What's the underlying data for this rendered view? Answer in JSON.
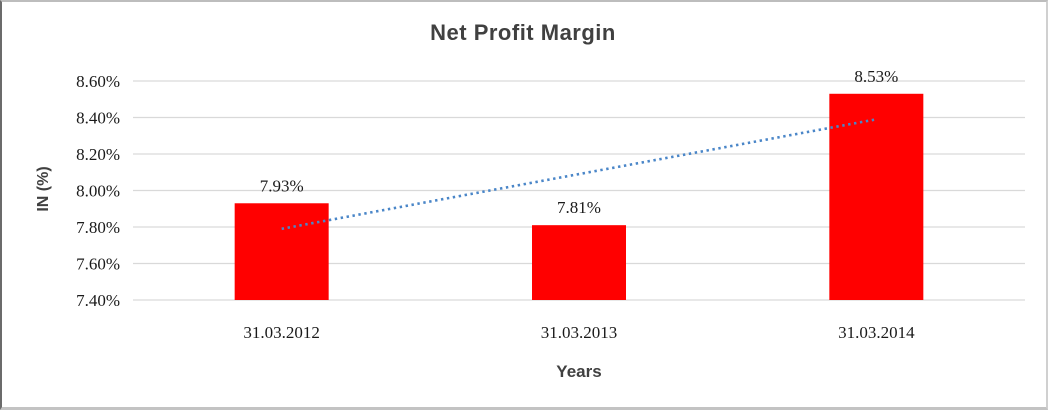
{
  "chart_data": {
    "type": "bar",
    "title": "Net Profit Margin",
    "xlabel": "Years",
    "ylabel": "IN (%)",
    "categories": [
      "31.03.2012",
      "31.03.2013",
      "31.03.2014"
    ],
    "series": [
      {
        "name": "Net Profit Margin",
        "values": [
          7.93,
          7.81,
          8.53
        ]
      }
    ],
    "data_labels": [
      "7.93%",
      "7.81%",
      "8.53%"
    ],
    "ylim": [
      7.4,
      8.6
    ],
    "ytick_step": 0.2,
    "ytick_labels": [
      "7.40%",
      "7.60%",
      "7.80%",
      "8.00%",
      "8.20%",
      "8.40%",
      "8.60%"
    ],
    "grid": true,
    "legend": "none",
    "trendline": {
      "type": "linear",
      "style": "dotted",
      "points": [
        7.79,
        8.09,
        8.39
      ]
    },
    "colors": {
      "bar": "#ff0000",
      "trendline": "#4a86c8",
      "gridline": "#d9d9d9",
      "title_text": "#404040",
      "label_text": "#1a1a1a",
      "background": "#ffffff"
    }
  }
}
